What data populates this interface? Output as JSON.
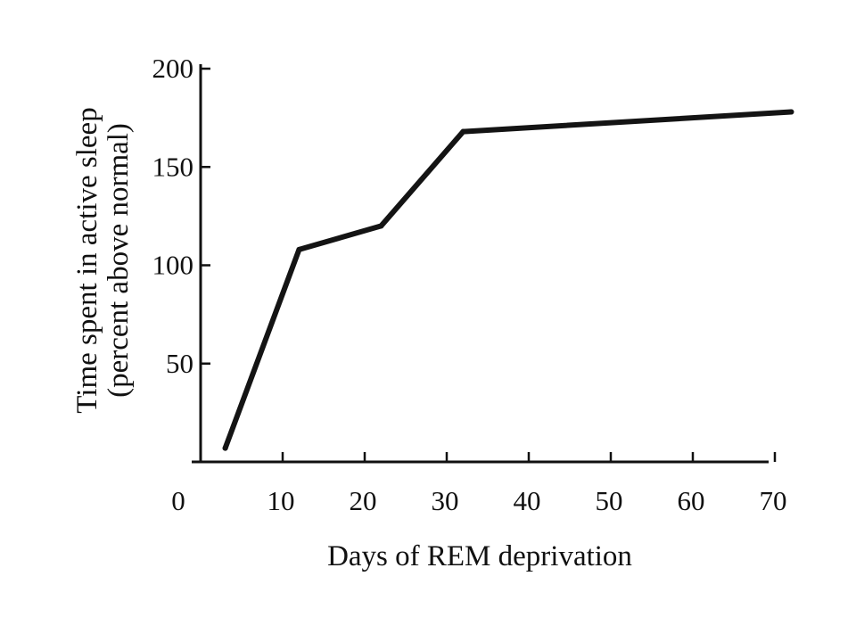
{
  "chart_data": {
    "type": "line",
    "title": "",
    "xlabel": "Days of REM deprivation",
    "ylabel_line1": "Time spent in active sleep",
    "ylabel_line2": "(percent above normal)",
    "xlim": [
      0,
      72
    ],
    "ylim": [
      0,
      200
    ],
    "x_ticks": [
      0,
      10,
      20,
      30,
      40,
      50,
      60,
      70
    ],
    "x_tick_labels": [
      "0",
      "10",
      "20",
      "30",
      "40",
      "50",
      "60",
      "70"
    ],
    "y_ticks": [
      50,
      100,
      150,
      200
    ],
    "y_tick_labels": [
      "50",
      "100",
      "150",
      "200"
    ],
    "grid": false,
    "line_color": "#141414",
    "series": [
      {
        "x": [
          3,
          12,
          22,
          32,
          72
        ],
        "y": [
          7,
          108,
          120,
          168,
          178
        ]
      }
    ]
  }
}
